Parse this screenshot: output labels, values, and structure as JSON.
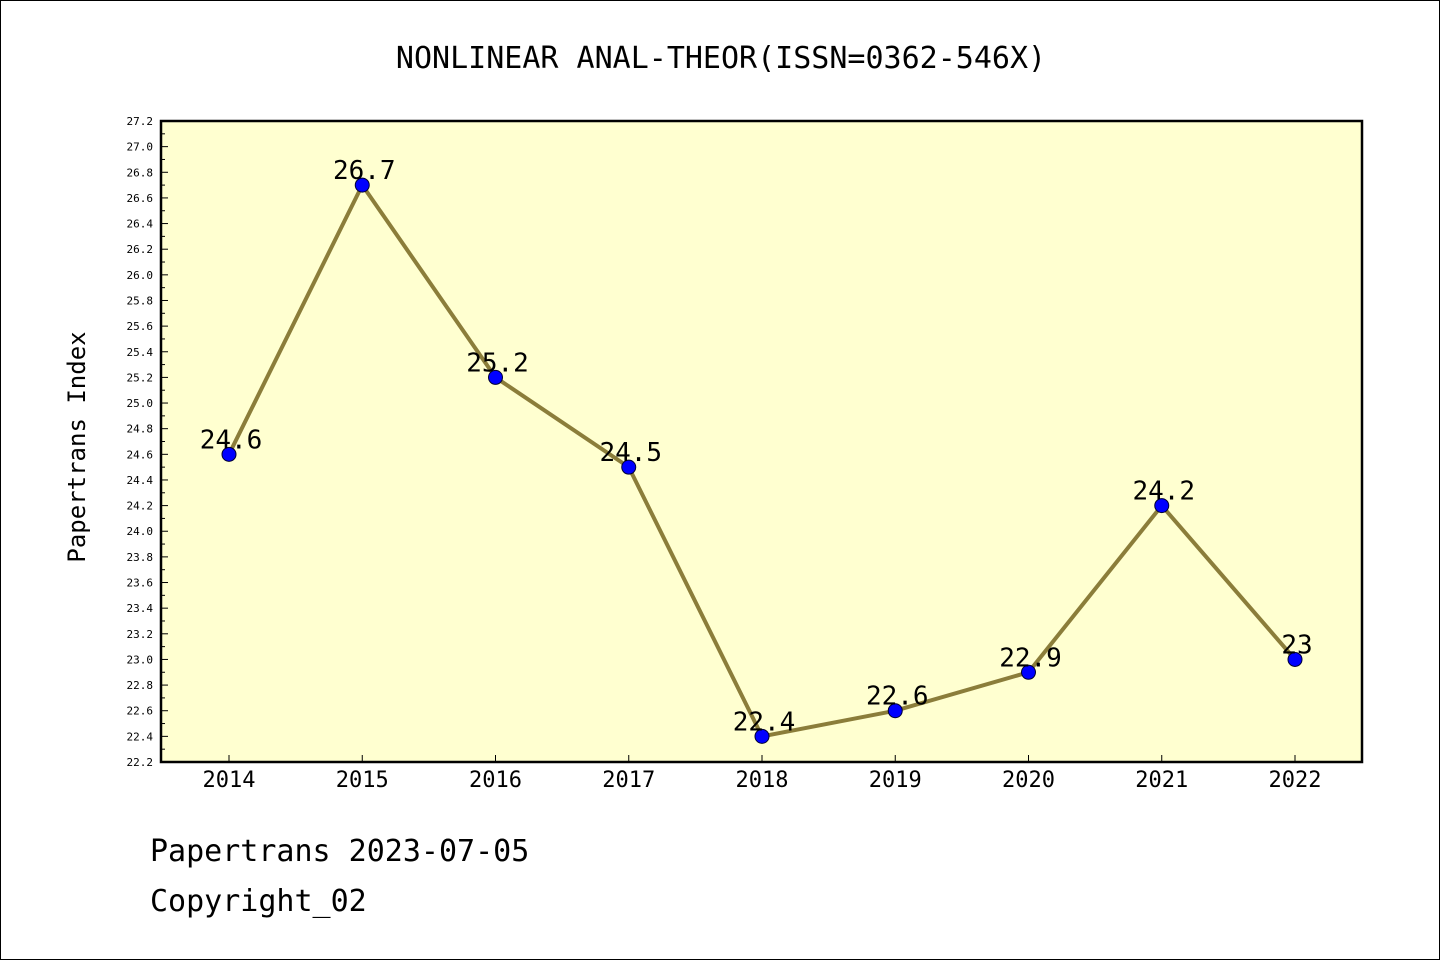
{
  "chart_data": {
    "type": "line",
    "title": "NONLINEAR ANAL-THEOR(ISSN=0362-546X)",
    "ylabel": "Papertrans Index",
    "xlabel": "",
    "categories": [
      "2014",
      "2015",
      "2016",
      "2017",
      "2018",
      "2019",
      "2020",
      "2021",
      "2022"
    ],
    "values": [
      24.6,
      26.7,
      25.2,
      24.5,
      22.4,
      22.6,
      22.9,
      24.2,
      23.0
    ],
    "data_labels": [
      "24.6",
      "26.7",
      "25.2",
      "24.5",
      "22.4",
      "22.6",
      "22.9",
      "24.2",
      "23"
    ],
    "ylim": [
      22.2,
      27.2
    ],
    "y_ticks": [
      "22.2",
      "22.4",
      "22.6",
      "22.8",
      "23.0",
      "23.2",
      "23.4",
      "23.6",
      "23.8",
      "24.0",
      "24.2",
      "24.4",
      "24.6",
      "24.8",
      "25.0",
      "25.2",
      "25.4",
      "25.6",
      "25.8",
      "26.0",
      "26.2",
      "26.4",
      "26.6",
      "26.8",
      "27.0",
      "27.2"
    ],
    "grid": false,
    "legend": "none",
    "colors": {
      "line": "#8b7d3a",
      "marker": "#0000ff",
      "plot_background": "#ffffd0"
    }
  },
  "footer": {
    "date_text": "Papertrans 2023-07-05",
    "copyright_text": "Copyright_02"
  }
}
